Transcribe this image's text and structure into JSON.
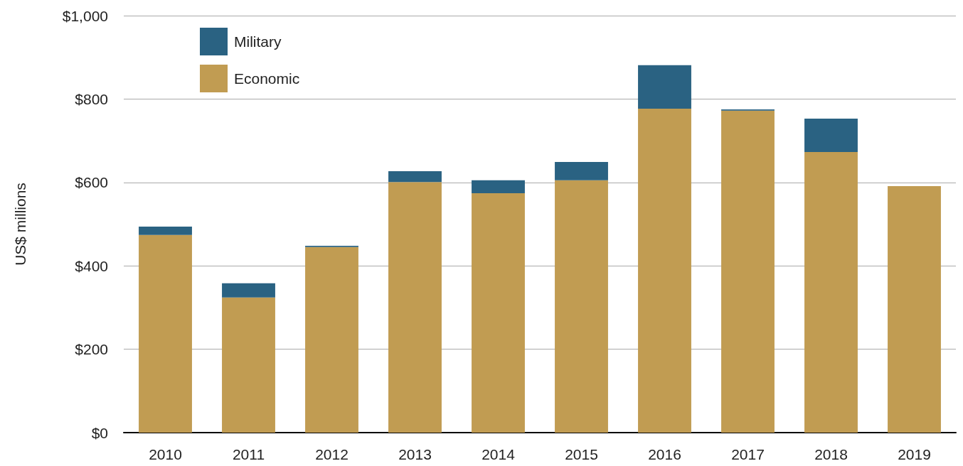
{
  "chart_data": {
    "type": "bar",
    "stacked": true,
    "ylabel": "US$ millions",
    "categories": [
      "2010",
      "2011",
      "2012",
      "2013",
      "2014",
      "2015",
      "2016",
      "2017",
      "2018",
      "2019"
    ],
    "series": [
      {
        "name": "Economic",
        "color": "#c19c52",
        "values": [
          474,
          324,
          445,
          601,
          574,
          605,
          777,
          772,
          673,
          591
        ]
      },
      {
        "name": "Military",
        "color": "#2a6282",
        "values": [
          20,
          34,
          3,
          26,
          31,
          44,
          104,
          3,
          80,
          0
        ]
      }
    ],
    "ylim": [
      0,
      1000
    ],
    "yticks": [
      {
        "value": 0,
        "label": "$0"
      },
      {
        "value": 200,
        "label": "$200"
      },
      {
        "value": 400,
        "label": "$400"
      },
      {
        "value": 600,
        "label": "$600"
      },
      {
        "value": 800,
        "label": "$800"
      },
      {
        "value": 1000,
        "label": "$1,000"
      }
    ],
    "grid": "y",
    "legend": "top left"
  }
}
